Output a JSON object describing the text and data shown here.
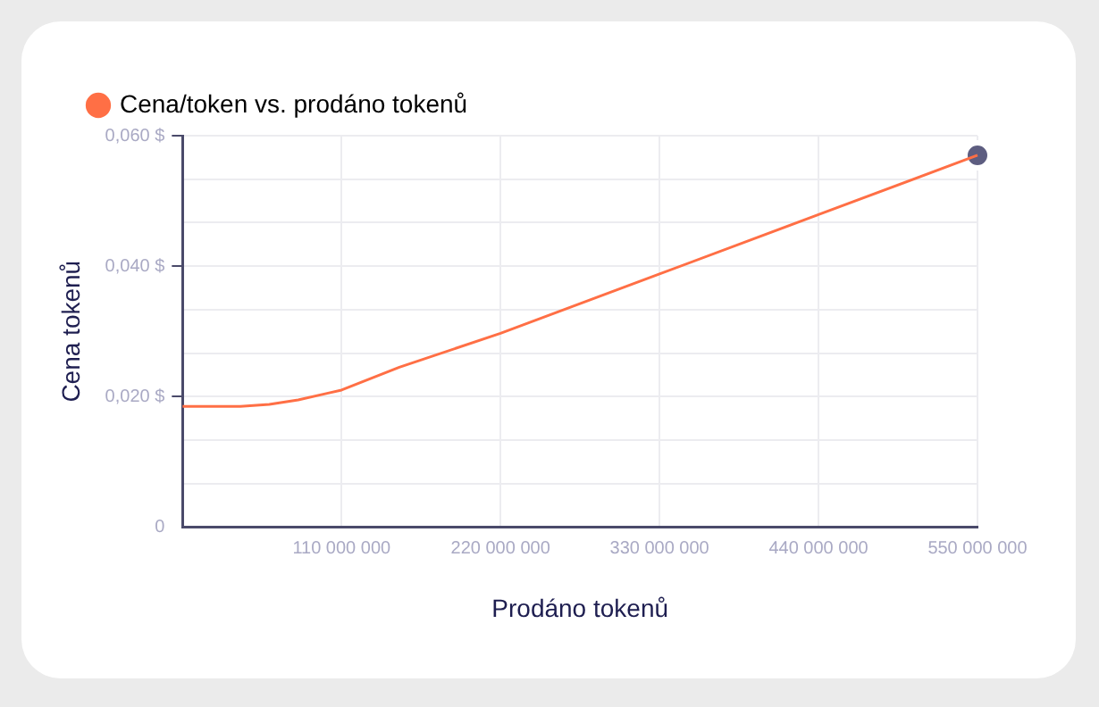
{
  "chart_data": {
    "type": "line",
    "xlabel": "Prodáno tokenů",
    "ylabel": "Cena tokenů",
    "legend": "top left",
    "grid": true,
    "xlim": [
      0,
      550000000
    ],
    "xticks": [
      {
        "value": 110000000,
        "label": "110 000 000"
      },
      {
        "value": 220000000,
        "label": "220 000 000"
      },
      {
        "value": 330000000,
        "label": "330 000 000"
      },
      {
        "value": 440000000,
        "label": "440 000 000"
      },
      {
        "value": 550000000,
        "label": "550 000 000"
      }
    ],
    "ylim": [
      0,
      0.06
    ],
    "yticks": [
      0,
      {
        "value": 0.00667,
        "label": null
      },
      {
        "value": 0.01333,
        "label": null
      },
      {
        "value": 0.02,
        "label": "0,020 $"
      },
      {
        "value": 0.02667,
        "label": null
      },
      {
        "value": 0.03333,
        "label": null
      },
      {
        "value": 0.04,
        "label": "0,040 $"
      },
      {
        "value": 0.04667,
        "label": null
      },
      {
        "value": 0.05333,
        "label": null
      },
      {
        "value": 0.06,
        "label": "0,060 $"
      }
    ],
    "series": [
      {
        "name": "Cena/token vs. prodáno tokenů",
        "marker": "none",
        "color": "#ff6f45",
        "x": [
          0,
          40000000,
          60000000,
          80000000,
          100000000,
          110000000,
          150000000,
          220000000,
          330000000,
          440000000,
          550000000
        ],
        "values": [
          0.0185,
          0.0185,
          0.0188,
          0.0195,
          0.0205,
          0.021,
          0.0245,
          0.0297,
          0.0388,
          0.0479,
          0.057
        ]
      },
      {
        "type": "scatter",
        "marker": "circle",
        "color": "#5d5d80",
        "x": [
          550000000
        ],
        "values": [
          0.057
        ]
      }
    ]
  }
}
